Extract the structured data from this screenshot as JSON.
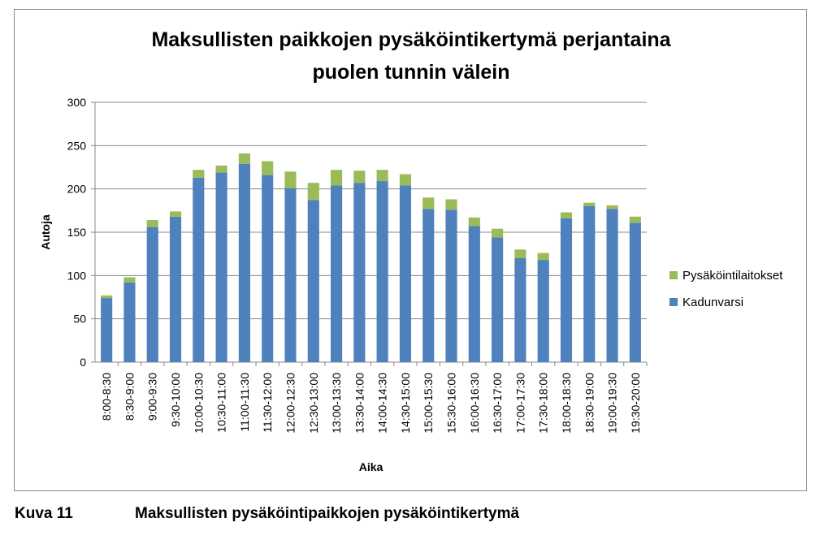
{
  "chart_data": {
    "type": "bar",
    "stacked": true,
    "title_lines": [
      "Maksullisten paikkojen pysäköintikertymä perjantaina",
      "puolen tunnin välein"
    ],
    "xlabel": "Aika",
    "ylabel": "Autoja",
    "ylim": [
      0,
      300
    ],
    "yticks": [
      0,
      50,
      100,
      150,
      200,
      250,
      300
    ],
    "grid": true,
    "legend_position": "right",
    "categories": [
      "8:00-8:30",
      "8:30-9:00",
      "9:00-9:30",
      "9:30-10:00",
      "10:00-10:30",
      "10:30-11:00",
      "11:00-11:30",
      "11:30-12:00",
      "12:00-12:30",
      "12:30-13:00",
      "13:00-13:30",
      "13:30-14:00",
      "14:00-14:30",
      "14:30-15:00",
      "15:00-15:30",
      "15:30-16:00",
      "16:00-16:30",
      "16:30-17:00",
      "17:00-17:30",
      "17:30-18:00",
      "18:00-18:30",
      "18:30-19:00",
      "19:00-19:30",
      "19:30-20:00"
    ],
    "series": [
      {
        "name": "Kadunvarsi",
        "color": "#4f81bd",
        "values": [
          74,
          92,
          156,
          168,
          213,
          219,
          229,
          216,
          201,
          187,
          204,
          207,
          209,
          204,
          177,
          176,
          157,
          144,
          120,
          118,
          166,
          180,
          177,
          161
        ]
      },
      {
        "name": "Pysäköintilaitokset",
        "color": "#9bbb59",
        "values": [
          3,
          6,
          8,
          6,
          9,
          8,
          12,
          16,
          19,
          20,
          18,
          14,
          13,
          13,
          13,
          12,
          10,
          10,
          10,
          8,
          7,
          4,
          4,
          7
        ]
      }
    ],
    "legend_order": [
      "Pysäköintilaitokset",
      "Kadunvarsi"
    ]
  },
  "caption": {
    "label": "Kuva 11",
    "text": "Maksullisten pysäköintipaikkojen pysäköintikertymä"
  }
}
